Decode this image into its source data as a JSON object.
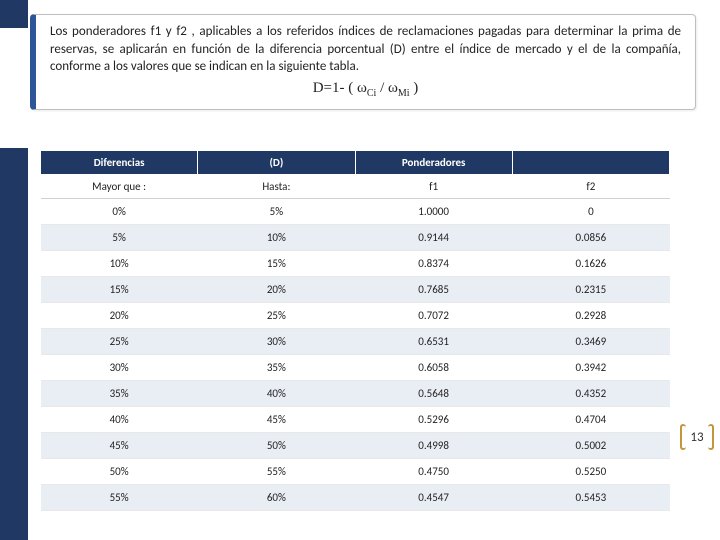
{
  "colors": {
    "accent_dark": "#1f3864",
    "accent_border": "#2e5597",
    "row_alt_bg": "#e9edf4",
    "bracket_color": "#c5953c",
    "border_gray": "#d0d0d0",
    "text_color": "#222222",
    "bg": "#ffffff"
  },
  "description": "Los ponderadores f1 y f2 , aplicables a los referidos índices de reclamaciones pagadas para determinar la prima de reservas, se aplicarán en función de la diferencia porcentual (D) entre el índice de mercado y el de la compañía, conforme a los valores que se indican en la siguiente tabla.",
  "formula_text": "D=1- ( ω Ci / ω Mi )",
  "formula": {
    "prefix": "D=1- ( ω",
    "sub1": "Ci",
    "mid": " / ω",
    "sub2": "Mi",
    "suffix": " )"
  },
  "table": {
    "header1": {
      "c1": "Diferencias",
      "c2": "(D)",
      "c3": "Ponderadores",
      "c4": ""
    },
    "header2": {
      "c1": "Mayor que :",
      "c2": "Hasta:",
      "c3": "f1",
      "c4": "f2"
    },
    "column_widths_pct": [
      25,
      25,
      25,
      25
    ],
    "rows": [
      {
        "from": "0%",
        "to": "5%",
        "f1": "1.0000",
        "f2": "0"
      },
      {
        "from": "5%",
        "to": "10%",
        "f1": "0.9144",
        "f2": "0.0856"
      },
      {
        "from": "10%",
        "to": "15%",
        "f1": "0.8374",
        "f2": "0.1626"
      },
      {
        "from": "15%",
        "to": "20%",
        "f1": "0.7685",
        "f2": "0.2315"
      },
      {
        "from": "20%",
        "to": "25%",
        "f1": "0.7072",
        "f2": "0.2928"
      },
      {
        "from": "25%",
        "to": "30%",
        "f1": "0.6531",
        "f2": "0.3469"
      },
      {
        "from": "30%",
        "to": "35%",
        "f1": "0.6058",
        "f2": "0.3942"
      },
      {
        "from": "35%",
        "to": "40%",
        "f1": "0.5648",
        "f2": "0.4352"
      },
      {
        "from": "40%",
        "to": "45%",
        "f1": "0.5296",
        "f2": "0.4704"
      },
      {
        "from": "45%",
        "to": "50%",
        "f1": "0.4998",
        "f2": "0.5002"
      },
      {
        "from": "50%",
        "to": "55%",
        "f1": "0.4750",
        "f2": "0.5250"
      },
      {
        "from": "55%",
        "to": "60%",
        "f1": "0.4547",
        "f2": "0.5453"
      }
    ]
  },
  "page_number": "13",
  "fonts": {
    "body_size_pt": 13,
    "table_size_pt": 11,
    "formula_family": "Times New Roman"
  }
}
